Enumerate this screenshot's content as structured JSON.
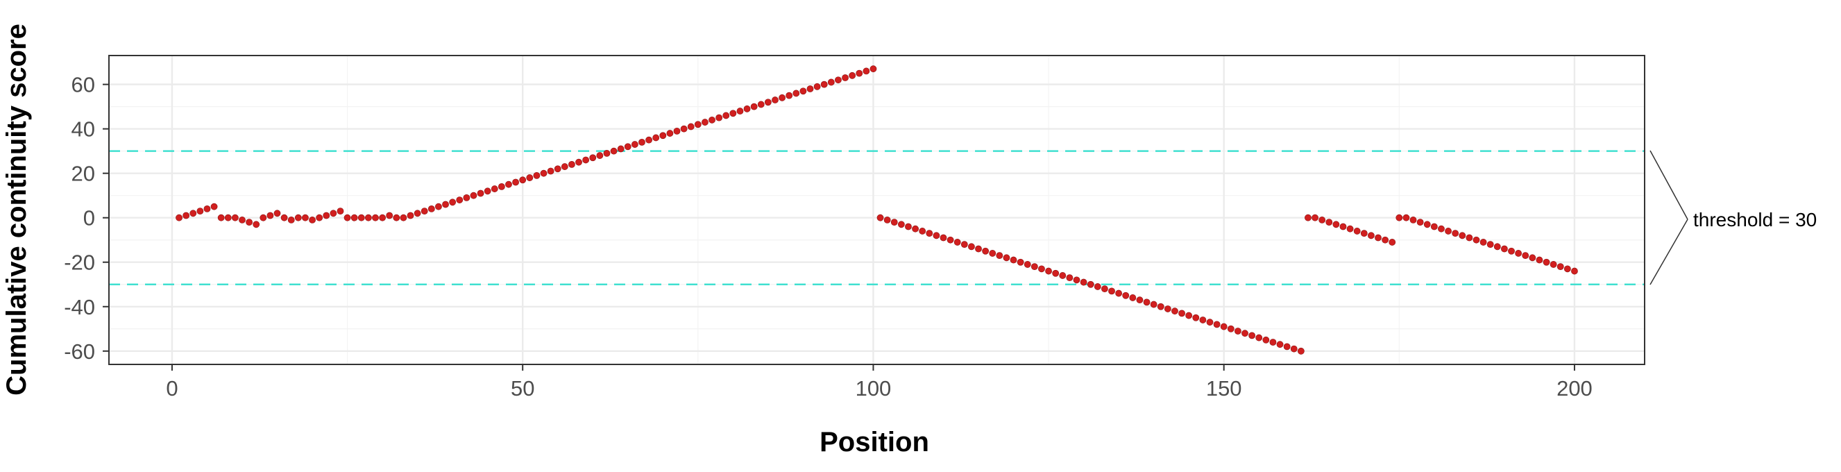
{
  "chart_data": {
    "type": "scatter",
    "title": "",
    "xlabel": "Position",
    "ylabel": "Cumulative continuity score",
    "xlim": [
      -9,
      210
    ],
    "ylim": [
      -66,
      73
    ],
    "x_ticks": [
      0,
      50,
      100,
      150,
      200
    ],
    "y_ticks": [
      60,
      40,
      20,
      0,
      -20,
      -40,
      -60
    ],
    "x_tick_labels": [
      "0",
      "50",
      "100",
      "150",
      "200"
    ],
    "y_tick_labels": [
      "60",
      "40",
      "20",
      "0",
      "-20",
      "-40",
      "-60"
    ],
    "grid": true,
    "legend": "none",
    "colors": {
      "points": "#d11f1f",
      "threshold_line": "#40e0d0",
      "panel_border": "#333333",
      "grid_major": "#ebebeb",
      "grid_minor": "#f3f3f3"
    },
    "reference_lines": [
      {
        "axis": "y",
        "value": 30,
        "style": "dashed"
      },
      {
        "axis": "y",
        "value": -30,
        "style": "dashed"
      }
    ],
    "annotation": {
      "text": "threshold = 30"
    },
    "series": [
      {
        "x": [
          1,
          2,
          3,
          4,
          5,
          6,
          7,
          8,
          9,
          10,
          11,
          12,
          13,
          14,
          15,
          16,
          17,
          18,
          19,
          20,
          21,
          22,
          23,
          24,
          25,
          26,
          27,
          28,
          29,
          30,
          31,
          32,
          33,
          34,
          35,
          36,
          37,
          38,
          39,
          40,
          41,
          42,
          43,
          44,
          45,
          46,
          47,
          48,
          49,
          50,
          51,
          52,
          53,
          54,
          55,
          56,
          57,
          58,
          59,
          60,
          61,
          62,
          63,
          64,
          65,
          66,
          67,
          68,
          69,
          70,
          71,
          72,
          73,
          74,
          75,
          76,
          77,
          78,
          79,
          80,
          81,
          82,
          83,
          84,
          85,
          86,
          87,
          88,
          89,
          90,
          91,
          92,
          93,
          94,
          95,
          96,
          97,
          98,
          99,
          100,
          101,
          102,
          103,
          104,
          105,
          106,
          107,
          108,
          109,
          110,
          111,
          112,
          113,
          114,
          115,
          116,
          117,
          118,
          119,
          120,
          121,
          122,
          123,
          124,
          125,
          126,
          127,
          128,
          129,
          130,
          131,
          132,
          133,
          134,
          135,
          136,
          137,
          138,
          139,
          140,
          141,
          142,
          143,
          144,
          145,
          146,
          147,
          148,
          149,
          150,
          151,
          152,
          153,
          154,
          155,
          156,
          157,
          158,
          159,
          160,
          161,
          162,
          163,
          164,
          165,
          166,
          167,
          168,
          169,
          170,
          171,
          172,
          173,
          174,
          175,
          176,
          177,
          178,
          179,
          180,
          181,
          182,
          183,
          184,
          185,
          186,
          187,
          188,
          189,
          190,
          191,
          192,
          193,
          194,
          195,
          196,
          197,
          198,
          199,
          200
        ],
        "y": [
          0,
          1,
          2,
          3,
          4,
          5,
          0,
          0,
          0,
          -1,
          -2,
          -3,
          0,
          1,
          2,
          0,
          -1,
          0,
          0,
          -1,
          0,
          1,
          2,
          3,
          0,
          0,
          0,
          0,
          0,
          0,
          1,
          0,
          0,
          1,
          2,
          3,
          4,
          5,
          6,
          7,
          8,
          9,
          10,
          11,
          12,
          13,
          14,
          15,
          16,
          17,
          18,
          19,
          20,
          21,
          22,
          23,
          24,
          25,
          26,
          27,
          28,
          29,
          30,
          31,
          32,
          33,
          34,
          35,
          36,
          37,
          38,
          39,
          40,
          41,
          42,
          43,
          44,
          45,
          46,
          47,
          48,
          49,
          50,
          51,
          52,
          53,
          54,
          55,
          56,
          57,
          58,
          59,
          60,
          61,
          62,
          63,
          64,
          65,
          66,
          67,
          0,
          -1,
          -2,
          -3,
          -4,
          -5,
          -6,
          -7,
          -8,
          -9,
          -10,
          -11,
          -12,
          -13,
          -14,
          -15,
          -16,
          -17,
          -18,
          -19,
          -20,
          -21,
          -22,
          -23,
          -24,
          -25,
          -26,
          -27,
          -28,
          -29,
          -30,
          -31,
          -32,
          -33,
          -34,
          -35,
          -36,
          -37,
          -38,
          -39,
          -40,
          -41,
          -42,
          -43,
          -44,
          -45,
          -46,
          -47,
          -48,
          -49,
          -50,
          -51,
          -52,
          -53,
          -54,
          -55,
          -56,
          -57,
          -58,
          -59,
          -60,
          0,
          0,
          -1,
          -2,
          -3,
          -4,
          -5,
          -6,
          -7,
          -8,
          -9,
          -10,
          -11,
          0,
          0,
          -1,
          -2,
          -3,
          -4,
          -5,
          -6,
          -7,
          -8,
          -9,
          -10,
          -11,
          -12,
          -13,
          -14,
          -15,
          -16,
          -17,
          -18,
          -19,
          -20,
          -21,
          -22,
          -23,
          -24
        ]
      }
    ]
  }
}
